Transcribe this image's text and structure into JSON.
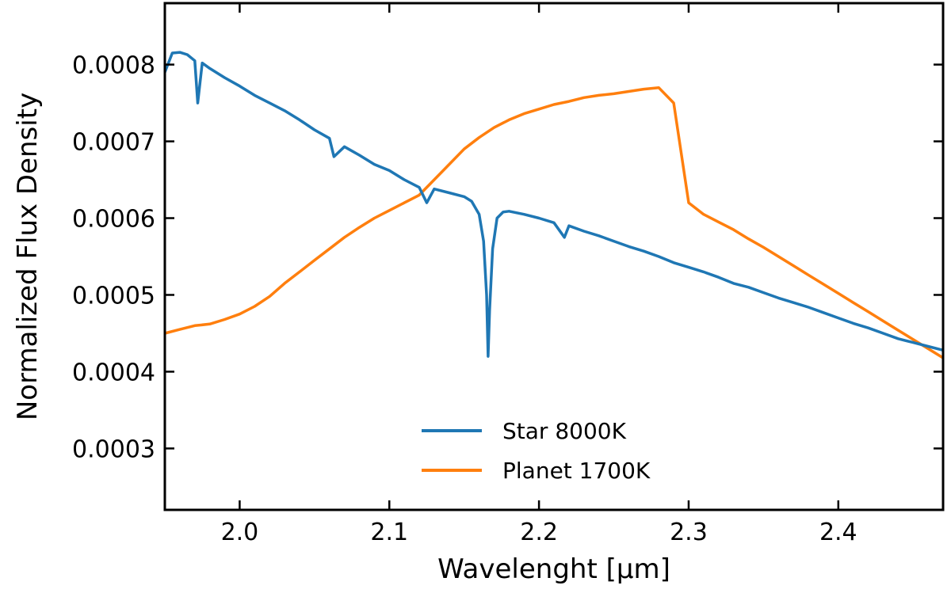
{
  "chart_data": {
    "type": "line",
    "title": "",
    "xlabel": "Wavelenght [μm]",
    "ylabel": "Normalized Flux Density",
    "xlim": [
      1.95,
      2.47
    ],
    "ylim": [
      0.00022,
      0.00088
    ],
    "x_ticks": [
      2.0,
      2.1,
      2.2,
      2.3,
      2.4
    ],
    "x_tick_labels": [
      "2.0",
      "2.1",
      "2.2",
      "2.3",
      "2.4"
    ],
    "y_ticks": [
      0.0003,
      0.0004,
      0.0005,
      0.0006,
      0.0007,
      0.0008
    ],
    "y_tick_labels": [
      "0.0003",
      "0.0004",
      "0.0005",
      "0.0006",
      "0.0007",
      "0.0008"
    ],
    "grid": false,
    "legend_position": "bottom-center",
    "series": [
      {
        "name": "Star 8000K",
        "color": "#1f77b4",
        "x": [
          1.95,
          1.955,
          1.96,
          1.965,
          1.97,
          1.972,
          1.975,
          1.98,
          1.99,
          2.0,
          2.01,
          2.02,
          2.03,
          2.04,
          2.05,
          2.06,
          2.063,
          2.07,
          2.08,
          2.09,
          2.1,
          2.11,
          2.12,
          2.125,
          2.13,
          2.14,
          2.15,
          2.155,
          2.16,
          2.163,
          2.165,
          2.166,
          2.167,
          2.169,
          2.172,
          2.176,
          2.18,
          2.19,
          2.2,
          2.21,
          2.217,
          2.22,
          2.23,
          2.24,
          2.25,
          2.26,
          2.27,
          2.28,
          2.29,
          2.3,
          2.31,
          2.32,
          2.33,
          2.34,
          2.35,
          2.36,
          2.37,
          2.38,
          2.39,
          2.4,
          2.41,
          2.42,
          2.43,
          2.44,
          2.45,
          2.46,
          2.47
        ],
        "y": [
          0.00079,
          0.000815,
          0.000816,
          0.000813,
          0.000805,
          0.00075,
          0.000802,
          0.000795,
          0.000783,
          0.000772,
          0.00076,
          0.00075,
          0.00074,
          0.000728,
          0.000715,
          0.000704,
          0.00068,
          0.000693,
          0.000682,
          0.00067,
          0.000662,
          0.00065,
          0.00064,
          0.00062,
          0.000638,
          0.000633,
          0.000628,
          0.000622,
          0.000605,
          0.00057,
          0.0005,
          0.00042,
          0.00048,
          0.00056,
          0.0006,
          0.000608,
          0.000609,
          0.000605,
          0.0006,
          0.000594,
          0.000575,
          0.00059,
          0.000583,
          0.000577,
          0.00057,
          0.000563,
          0.000557,
          0.00055,
          0.000542,
          0.000536,
          0.00053,
          0.000523,
          0.000515,
          0.00051,
          0.000503,
          0.000496,
          0.00049,
          0.000484,
          0.000477,
          0.00047,
          0.000463,
          0.000457,
          0.00045,
          0.000443,
          0.000438,
          0.000433,
          0.000428
        ]
      },
      {
        "name": "Planet 1700K",
        "color": "#ff7f0e",
        "x": [
          1.95,
          1.96,
          1.97,
          1.98,
          1.99,
          2.0,
          2.01,
          2.02,
          2.03,
          2.04,
          2.05,
          2.06,
          2.07,
          2.08,
          2.09,
          2.1,
          2.11,
          2.12,
          2.13,
          2.14,
          2.15,
          2.16,
          2.17,
          2.18,
          2.19,
          2.2,
          2.21,
          2.22,
          2.23,
          2.24,
          2.25,
          2.26,
          2.27,
          2.28,
          2.29,
          2.3,
          2.31,
          2.32,
          2.33,
          2.34,
          2.35,
          2.36,
          2.37,
          2.38,
          2.39,
          2.4,
          2.41,
          2.42,
          2.43,
          2.44,
          2.45,
          2.46,
          2.47
        ],
        "y": [
          0.00045,
          0.000455,
          0.00046,
          0.000462,
          0.000468,
          0.000475,
          0.000485,
          0.000498,
          0.000515,
          0.00053,
          0.000545,
          0.00056,
          0.000575,
          0.000588,
          0.0006,
          0.00061,
          0.00062,
          0.00063,
          0.00065,
          0.00067,
          0.00069,
          0.000705,
          0.000718,
          0.000728,
          0.000736,
          0.000742,
          0.000748,
          0.000752,
          0.000757,
          0.00076,
          0.000762,
          0.000765,
          0.000768,
          0.00077,
          0.00075,
          0.00062,
          0.000605,
          0.000595,
          0.000585,
          0.000573,
          0.000562,
          0.00055,
          0.000538,
          0.000526,
          0.000514,
          0.000502,
          0.00049,
          0.000478,
          0.000466,
          0.000454,
          0.000442,
          0.00043,
          0.000418
        ]
      }
    ]
  }
}
